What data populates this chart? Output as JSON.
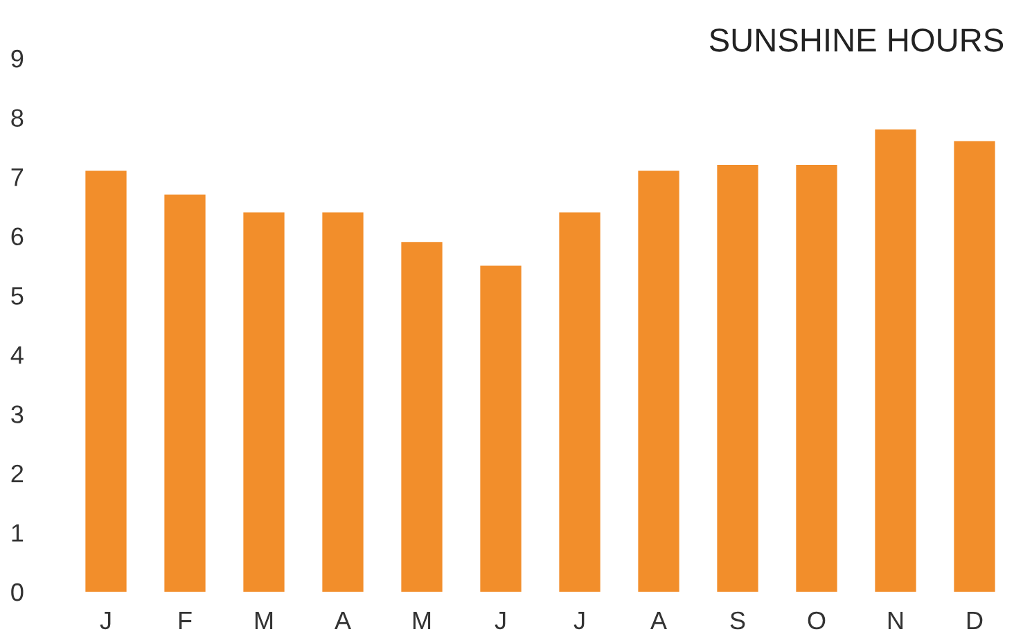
{
  "chart_data": {
    "type": "bar",
    "title": "SUNSHINE HOURS",
    "categories": [
      "J",
      "F",
      "M",
      "A",
      "M",
      "J",
      "J",
      "A",
      "S",
      "O",
      "N",
      "D"
    ],
    "values": [
      7.1,
      6.7,
      6.4,
      6.4,
      5.9,
      5.5,
      6.4,
      7.1,
      7.2,
      7.2,
      7.8,
      7.6
    ],
    "color": "#f28e2b",
    "ylim": [
      0,
      9
    ],
    "yticks": [
      0,
      1,
      2,
      3,
      4,
      5,
      6,
      7,
      8,
      9
    ],
    "grid": false
  }
}
